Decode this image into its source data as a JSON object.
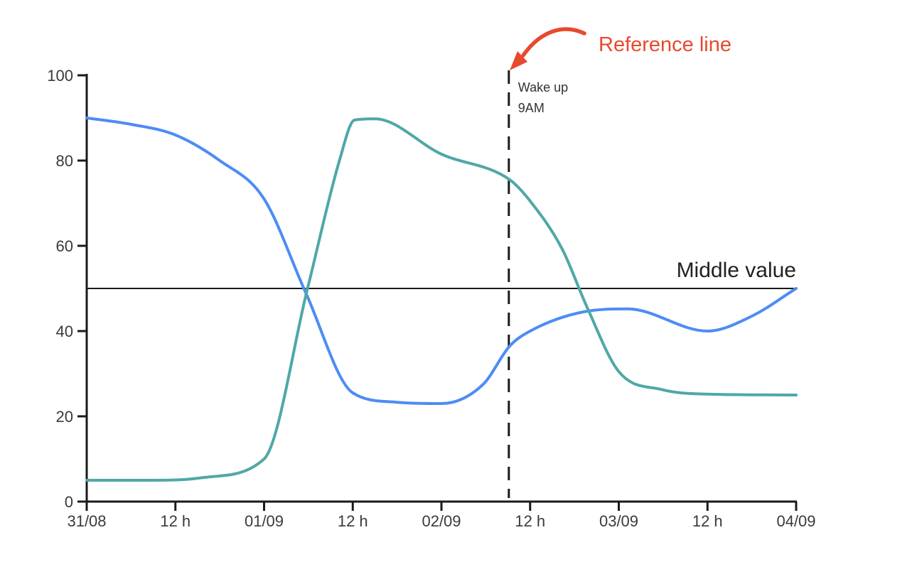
{
  "chart_data": {
    "type": "line",
    "title": "",
    "grid": "off",
    "legend": "none",
    "x_axis": {
      "tick_labels": [
        "31/08",
        "12 h",
        "01/09",
        "12 h",
        "02/09",
        "12 h",
        "03/09",
        "12 h",
        "04/09"
      ],
      "tick_positions_halfdays": [
        0,
        1,
        2,
        3,
        4,
        5,
        6,
        7,
        8
      ]
    },
    "y_axis": {
      "tick_labels": [
        "0",
        "20",
        "40",
        "60",
        "80",
        "100"
      ],
      "tick_values": [
        0,
        20,
        40,
        60,
        80,
        100
      ],
      "min": 0,
      "max": 100
    },
    "series": [
      {
        "name": "blue-line",
        "color": "#4d8cf5",
        "values_at_ticks": [
          90,
          86,
          71,
          25,
          23,
          40,
          45,
          40,
          50
        ],
        "points": [
          [
            0,
            90
          ],
          [
            0.5,
            88.5
          ],
          [
            1,
            86
          ],
          [
            1.5,
            80
          ],
          [
            2,
            71
          ],
          [
            2.47,
            49
          ],
          [
            3,
            25.5
          ],
          [
            3.5,
            23.3
          ],
          [
            4,
            23
          ],
          [
            4.47,
            27.5
          ],
          [
            4.77,
            36.5
          ],
          [
            5,
            40
          ],
          [
            5.6,
            44.5
          ],
          [
            6.1,
            45.2
          ],
          [
            7,
            40
          ],
          [
            7.5,
            43.5
          ],
          [
            8,
            50
          ]
        ]
      },
      {
        "name": "teal-line",
        "color": "#4fa8a6",
        "values_at_ticks": [
          5,
          5,
          10,
          90,
          81,
          70,
          30,
          25,
          25
        ],
        "points": [
          [
            0,
            5
          ],
          [
            0.7,
            5
          ],
          [
            1.3,
            5.6
          ],
          [
            2,
            10
          ],
          [
            2.49,
            50
          ],
          [
            2.85,
            80
          ],
          [
            3.02,
            89.5
          ],
          [
            3.25,
            89.8
          ],
          [
            4,
            81.5
          ],
          [
            4.77,
            75.5
          ],
          [
            5,
            70.5
          ],
          [
            5.36,
            59.3
          ],
          [
            5.64,
            45.7
          ],
          [
            6,
            30.5
          ],
          [
            6.48,
            26.3
          ],
          [
            7,
            25.2
          ],
          [
            8,
            25
          ]
        ]
      }
    ],
    "reference_lines": {
      "horizontal": {
        "value": 50,
        "label": "Middle value"
      },
      "vertical": {
        "position_halfdays": 4.76,
        "label_line1": "Wake up",
        "label_line2": "9AM"
      }
    },
    "annotation": {
      "label": "Reference line",
      "color": "#e8492d"
    }
  }
}
